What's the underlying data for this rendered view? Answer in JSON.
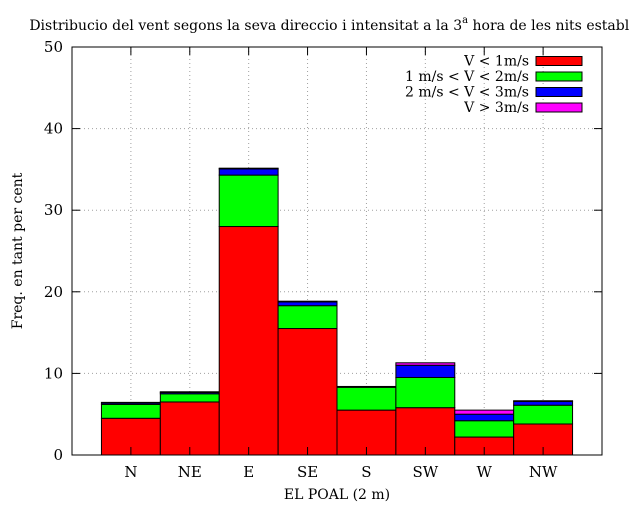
{
  "chart_data": {
    "type": "bar",
    "stacked": true,
    "title": "Distribucio del vent segons la seva direccio i intensitat a la 3",
    "title_superscript": "a",
    "title_suffix": " hora de les nits estables",
    "xlabel": "EL POAL (2 m)",
    "ylabel": "Freq. en tant per cent",
    "categories": [
      "N",
      "NE",
      "E",
      "SE",
      "S",
      "SW",
      "W",
      "NW"
    ],
    "ylim": [
      0,
      50
    ],
    "yticks": [
      0,
      10,
      20,
      30,
      40,
      50
    ],
    "grid": true,
    "legend_position": "top-right",
    "series": [
      {
        "name": "V < 1m/s",
        "color": "#ff0000",
        "values": [
          4.5,
          6.5,
          28.0,
          15.5,
          5.5,
          5.8,
          2.2,
          3.8
        ]
      },
      {
        "name": "1 m/s < V < 2m/s",
        "color": "#00ff00",
        "values": [
          1.7,
          1.0,
          6.3,
          2.8,
          2.8,
          3.7,
          2.0,
          2.3
        ]
      },
      {
        "name": "2 m/s < V < 3m/s",
        "color": "#0000ff",
        "values": [
          0.2,
          0.2,
          0.8,
          0.5,
          0.1,
          1.5,
          0.8,
          0.5
        ]
      },
      {
        "name": "V > 3m/s",
        "color": "#ff00ff",
        "values": [
          0.05,
          0.05,
          0.05,
          0.05,
          0.0,
          0.3,
          0.5,
          0.05
        ]
      }
    ]
  }
}
